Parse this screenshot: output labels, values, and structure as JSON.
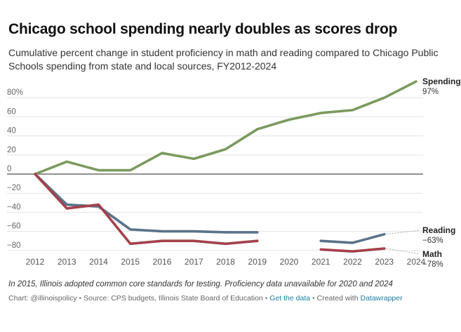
{
  "header": {
    "title": "Chicago school spending nearly doubles as scores drop",
    "subtitle": "Cumulative percent change in student proficiency in math and reading compared to Chicago Public Schools spending from state and local sources, FY2012-2024"
  },
  "chart_data": {
    "type": "line",
    "x": [
      2012,
      2013,
      2014,
      2015,
      2016,
      2017,
      2018,
      2019,
      2020,
      2021,
      2022,
      2023,
      2024
    ],
    "ylim": [
      -80,
      97
    ],
    "y_ticks": [
      80,
      60,
      40,
      20,
      0,
      -20,
      -40,
      -60,
      -80
    ],
    "y_tick_labels": [
      "80%",
      "60",
      "40",
      "20",
      "0",
      "−20",
      "−40",
      "−60",
      "−80"
    ],
    "x_tick_labels": [
      "2012",
      "2013",
      "2014",
      "2015",
      "2016",
      "2017",
      "2018",
      "2019",
      "2020",
      "2021",
      "2022",
      "2023",
      "2024"
    ],
    "grid": true,
    "series": [
      {
        "name": "Spending",
        "end_label": "97%",
        "color": "#7a9a5e",
        "values": [
          0,
          13,
          4,
          4,
          22,
          16,
          26,
          47,
          57,
          64,
          67,
          80,
          97
        ]
      },
      {
        "name": "Reading",
        "end_label": "−63%",
        "color": "#5a7389",
        "values": [
          0,
          -32,
          -34,
          -58,
          -60,
          -60,
          -61,
          -61,
          null,
          -70,
          -72,
          -63,
          null
        ]
      },
      {
        "name": "Math",
        "end_label": "−78%",
        "color": "#a3414b",
        "values": [
          0,
          -36,
          -32,
          -73,
          -70,
          -70,
          -73,
          -70,
          null,
          -79,
          -81,
          -78,
          null
        ]
      }
    ]
  },
  "footer": {
    "note": "In 2015, Illinois adopted common core standards for testing. Proficiency data unavailable for 2020 and 2024",
    "credit_chart": "Chart: @illinoispolicy",
    "credit_source": "Source: CPS budgets, Illinois State Board of Education",
    "get_data": "Get the data",
    "created_with": "Created with",
    "datawrapper": "Datawrapper"
  }
}
